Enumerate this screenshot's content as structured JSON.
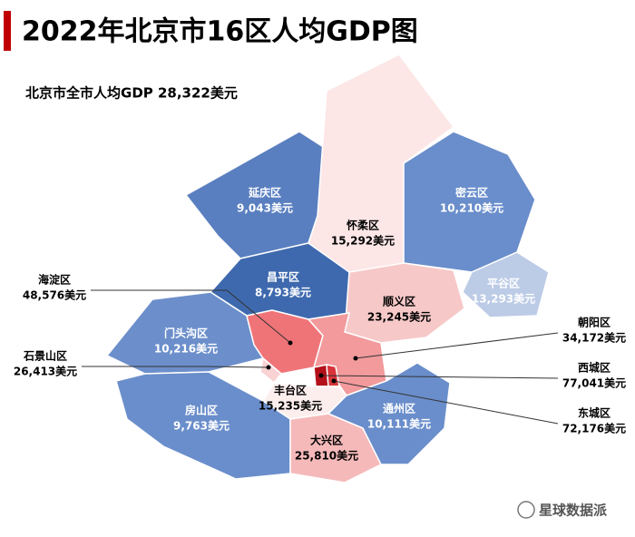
{
  "title": "2022年北京市16区人均GDP图",
  "subtitle": "北京市全市人均GDP 28,322美元",
  "districts": [
    {
      "name": "延庆区",
      "value": "9,043美元",
      "color": "#5a7fc0"
    },
    {
      "name": "怀柔区",
      "value": "15,292美元",
      "color": "#fce6e6"
    },
    {
      "name": "密云区",
      "value": "10,210美元",
      "color": "#6a8ecb"
    },
    {
      "name": "平谷区",
      "value": "13,293美元",
      "color": "#bccbe6"
    },
    {
      "name": "昌平区",
      "value": "8,793美元",
      "color": "#3e69ae"
    },
    {
      "name": "顺义区",
      "value": "23,245美元",
      "color": "#f7c8c8"
    },
    {
      "name": "门头沟区",
      "value": "10,216美元",
      "color": "#6c8fcb"
    },
    {
      "name": "海淀区",
      "value": "48,576美元",
      "color": "#ef7478"
    },
    {
      "name": "石景山区",
      "value": "26,413美元",
      "color": "#f9d2d3"
    },
    {
      "name": "朝阳区",
      "value": "34,172美元",
      "color": "#f29a9c"
    },
    {
      "name": "西城区",
      "value": "77,041美元",
      "color": "#b3101a"
    },
    {
      "name": "东城区",
      "value": "72,176美元",
      "color": "#d8343a"
    },
    {
      "name": "丰台区",
      "value": "15,235美元",
      "color": "#fdeeee"
    },
    {
      "name": "房山区",
      "value": "9,763美元",
      "color": "#6a8ecb"
    },
    {
      "name": "大兴区",
      "value": "25,810美元",
      "color": "#f5b9ba"
    },
    {
      "name": "通州区",
      "value": "10,111美元",
      "color": "#6a8ecb"
    }
  ],
  "footer": "星球数据派"
}
